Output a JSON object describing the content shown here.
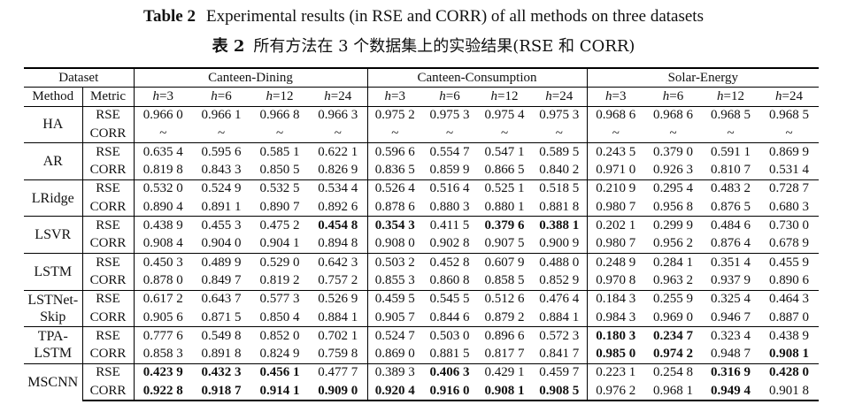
{
  "caption_en": {
    "label": "Table 2",
    "text": "Experimental results (in RSE and CORR) of all methods on three datasets"
  },
  "caption_zh": {
    "label": "表 2",
    "text": "所有方法在 3 个数据集上的实验结果(RSE 和 CORR)"
  },
  "header": {
    "dataset": "Dataset",
    "method": "Method",
    "metric": "Metric",
    "datasets": [
      "Canteen-Dining",
      "Canteen-Consumption",
      "Solar-Energy"
    ],
    "h_prefix": "h",
    "horizons": [
      "=3",
      "=6",
      "=12",
      "=24"
    ]
  },
  "rows": [
    {
      "method": "HA",
      "rse": [
        [
          "0.966 0",
          0
        ],
        [
          "0.966 1",
          0
        ],
        [
          "0.966 8",
          0
        ],
        [
          "0.966 3",
          0
        ],
        [
          "0.975 2",
          0
        ],
        [
          "0.975 3",
          0
        ],
        [
          "0.975 4",
          0
        ],
        [
          "0.975 3",
          0
        ],
        [
          "0.968 6",
          0
        ],
        [
          "0.968 6",
          0
        ],
        [
          "0.968 5",
          0
        ],
        [
          "0.968 5",
          0
        ]
      ],
      "corr": [
        [
          "~",
          0
        ],
        [
          "~",
          0
        ],
        [
          "~",
          0
        ],
        [
          "~",
          0
        ],
        [
          "~",
          0
        ],
        [
          "~",
          0
        ],
        [
          "~",
          0
        ],
        [
          "~",
          0
        ],
        [
          "~",
          0
        ],
        [
          "~",
          0
        ],
        [
          "~",
          0
        ],
        [
          "~",
          0
        ]
      ]
    },
    {
      "method": "AR",
      "rse": [
        [
          "0.635 4",
          0
        ],
        [
          "0.595 6",
          0
        ],
        [
          "0.585 1",
          0
        ],
        [
          "0.622 1",
          0
        ],
        [
          "0.596 6",
          0
        ],
        [
          "0.554 7",
          0
        ],
        [
          "0.547 1",
          0
        ],
        [
          "0.589 5",
          0
        ],
        [
          "0.243 5",
          0
        ],
        [
          "0.379 0",
          0
        ],
        [
          "0.591 1",
          0
        ],
        [
          "0.869 9",
          0
        ]
      ],
      "corr": [
        [
          "0.819 8",
          0
        ],
        [
          "0.843 3",
          0
        ],
        [
          "0.850 5",
          0
        ],
        [
          "0.826 9",
          0
        ],
        [
          "0.836 5",
          0
        ],
        [
          "0.859 9",
          0
        ],
        [
          "0.866 5",
          0
        ],
        [
          "0.840 2",
          0
        ],
        [
          "0.971 0",
          0
        ],
        [
          "0.926 3",
          0
        ],
        [
          "0.810 7",
          0
        ],
        [
          "0.531 4",
          0
        ]
      ]
    },
    {
      "method": "LRidge",
      "rse": [
        [
          "0.532 0",
          0
        ],
        [
          "0.524 9",
          0
        ],
        [
          "0.532 5",
          0
        ],
        [
          "0.534 4",
          0
        ],
        [
          "0.526 4",
          0
        ],
        [
          "0.516 4",
          0
        ],
        [
          "0.525 1",
          0
        ],
        [
          "0.518 5",
          0
        ],
        [
          "0.210 9",
          0
        ],
        [
          "0.295 4",
          0
        ],
        [
          "0.483 2",
          0
        ],
        [
          "0.728 7",
          0
        ]
      ],
      "corr": [
        [
          "0.890 4",
          0
        ],
        [
          "0.891 1",
          0
        ],
        [
          "0.890 7",
          0
        ],
        [
          "0.892 6",
          0
        ],
        [
          "0.878 6",
          0
        ],
        [
          "0.880 3",
          0
        ],
        [
          "0.880 1",
          0
        ],
        [
          "0.881 8",
          0
        ],
        [
          "0.980 7",
          0
        ],
        [
          "0.956 8",
          0
        ],
        [
          "0.876 5",
          0
        ],
        [
          "0.680 3",
          0
        ]
      ]
    },
    {
      "method": "LSVR",
      "rse": [
        [
          "0.438 9",
          0
        ],
        [
          "0.455 3",
          0
        ],
        [
          "0.475 2",
          0
        ],
        [
          "0.454 8",
          1
        ],
        [
          "0.354 3",
          1
        ],
        [
          "0.411 5",
          0
        ],
        [
          "0.379 6",
          1
        ],
        [
          "0.388 1",
          1
        ],
        [
          "0.202 1",
          0
        ],
        [
          "0.299 9",
          0
        ],
        [
          "0.484 6",
          0
        ],
        [
          "0.730 0",
          0
        ]
      ],
      "corr": [
        [
          "0.908 4",
          0
        ],
        [
          "0.904 0",
          0
        ],
        [
          "0.904 1",
          0
        ],
        [
          "0.894 8",
          0
        ],
        [
          "0.908 0",
          0
        ],
        [
          "0.902 8",
          0
        ],
        [
          "0.907 5",
          0
        ],
        [
          "0.900 9",
          0
        ],
        [
          "0.980 7",
          0
        ],
        [
          "0.956 2",
          0
        ],
        [
          "0.876 4",
          0
        ],
        [
          "0.678 9",
          0
        ]
      ]
    },
    {
      "method": "LSTM",
      "rse": [
        [
          "0.450 3",
          0
        ],
        [
          "0.489 9",
          0
        ],
        [
          "0.529 0",
          0
        ],
        [
          "0.642 3",
          0
        ],
        [
          "0.503 2",
          0
        ],
        [
          "0.452 8",
          0
        ],
        [
          "0.607 9",
          0
        ],
        [
          "0.488 0",
          0
        ],
        [
          "0.248 9",
          0
        ],
        [
          "0.284 1",
          0
        ],
        [
          "0.351 4",
          0
        ],
        [
          "0.455 9",
          0
        ]
      ],
      "corr": [
        [
          "0.878 0",
          0
        ],
        [
          "0.849 7",
          0
        ],
        [
          "0.819 2",
          0
        ],
        [
          "0.757 2",
          0
        ],
        [
          "0.855 3",
          0
        ],
        [
          "0.860 8",
          0
        ],
        [
          "0.858 5",
          0
        ],
        [
          "0.852 9",
          0
        ],
        [
          "0.970 8",
          0
        ],
        [
          "0.963 2",
          0
        ],
        [
          "0.937 9",
          0
        ],
        [
          "0.890 6",
          0
        ]
      ]
    },
    {
      "method": "LSTNet-",
      "method2": "Skip",
      "rse": [
        [
          "0.617 2",
          0
        ],
        [
          "0.643 7",
          0
        ],
        [
          "0.577 3",
          0
        ],
        [
          "0.526 9",
          0
        ],
        [
          "0.459 5",
          0
        ],
        [
          "0.545 5",
          0
        ],
        [
          "0.512 6",
          0
        ],
        [
          "0.476 4",
          0
        ],
        [
          "0.184 3",
          0
        ],
        [
          "0.255 9",
          0
        ],
        [
          "0.325 4",
          0
        ],
        [
          "0.464 3",
          0
        ]
      ],
      "corr": [
        [
          "0.905 6",
          0
        ],
        [
          "0.871 5",
          0
        ],
        [
          "0.850 4",
          0
        ],
        [
          "0.884 1",
          0
        ],
        [
          "0.905 7",
          0
        ],
        [
          "0.844 6",
          0
        ],
        [
          "0.879 2",
          0
        ],
        [
          "0.884 1",
          0
        ],
        [
          "0.984 3",
          0
        ],
        [
          "0.969 0",
          0
        ],
        [
          "0.946 7",
          0
        ],
        [
          "0.887 0",
          0
        ]
      ]
    },
    {
      "method": "TPA-",
      "method2": "LSTM",
      "rse": [
        [
          "0.777 6",
          0
        ],
        [
          "0.549 8",
          0
        ],
        [
          "0.852 0",
          0
        ],
        [
          "0.702 1",
          0
        ],
        [
          "0.524 7",
          0
        ],
        [
          "0.503 0",
          0
        ],
        [
          "0.896 6",
          0
        ],
        [
          "0.572 3",
          0
        ],
        [
          "0.180 3",
          1
        ],
        [
          "0.234 7",
          1
        ],
        [
          "0.323 4",
          0
        ],
        [
          "0.438 9",
          0
        ]
      ],
      "corr": [
        [
          "0.858 3",
          0
        ],
        [
          "0.891 8",
          0
        ],
        [
          "0.824 9",
          0
        ],
        [
          "0.759 8",
          0
        ],
        [
          "0.869 0",
          0
        ],
        [
          "0.881 5",
          0
        ],
        [
          "0.817 7",
          0
        ],
        [
          "0.841 7",
          0
        ],
        [
          "0.985 0",
          1
        ],
        [
          "0.974 2",
          1
        ],
        [
          "0.948 7",
          0
        ],
        [
          "0.908 1",
          1
        ]
      ]
    },
    {
      "method": "MSCNN",
      "rse": [
        [
          "0.423 9",
          1
        ],
        [
          "0.432 3",
          1
        ],
        [
          "0.456 1",
          1
        ],
        [
          "0.477 7",
          0
        ],
        [
          "0.389 3",
          0
        ],
        [
          "0.406 3",
          1
        ],
        [
          "0.429 1",
          0
        ],
        [
          "0.459 7",
          0
        ],
        [
          "0.223 1",
          0
        ],
        [
          "0.254 8",
          0
        ],
        [
          "0.316 9",
          1
        ],
        [
          "0.428 0",
          1
        ]
      ],
      "corr": [
        [
          "0.922 8",
          1
        ],
        [
          "0.918 7",
          1
        ],
        [
          "0.914 1",
          1
        ],
        [
          "0.909 0",
          1
        ],
        [
          "0.920 4",
          1
        ],
        [
          "0.916 0",
          1
        ],
        [
          "0.908 1",
          1
        ],
        [
          "0.908 5",
          1
        ],
        [
          "0.976 2",
          0
        ],
        [
          "0.968 1",
          0
        ],
        [
          "0.949 4",
          1
        ],
        [
          "0.901 8",
          0
        ]
      ]
    }
  ],
  "metric_labels": {
    "rse": "RSE",
    "corr": "CORR"
  }
}
